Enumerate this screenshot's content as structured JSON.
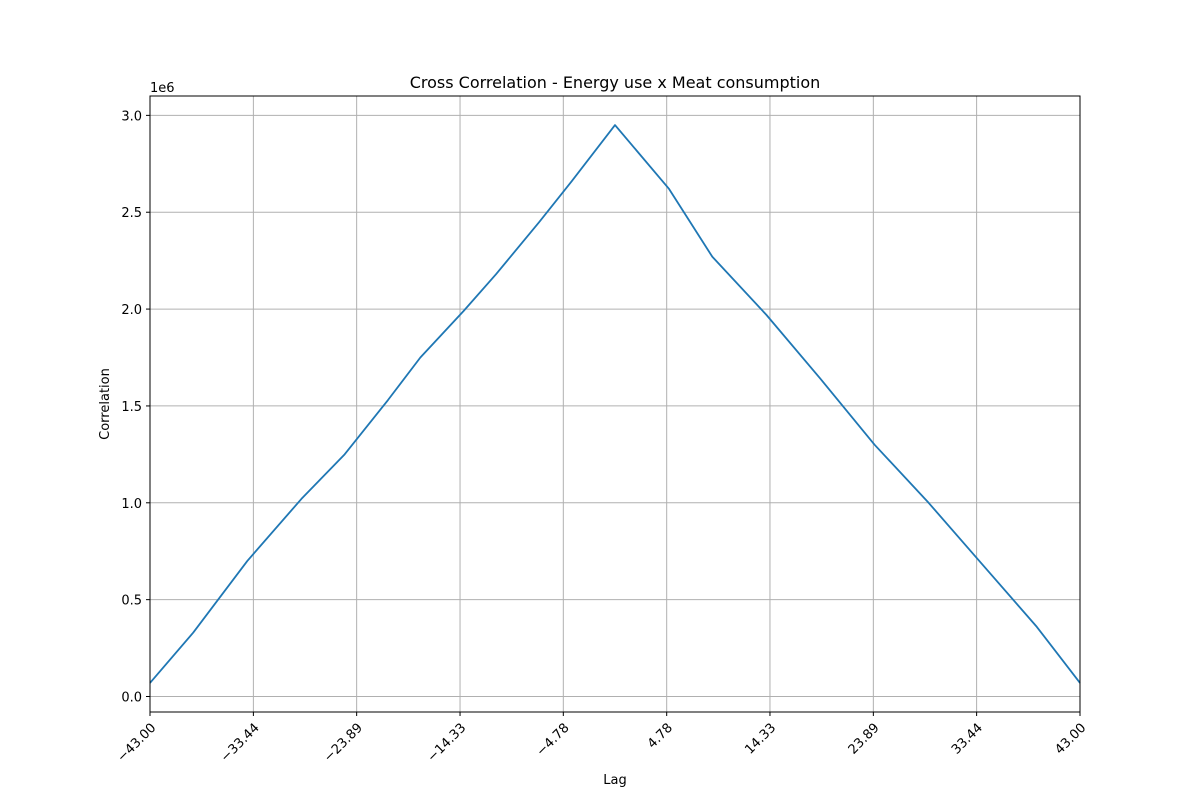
{
  "chart_data": {
    "type": "line",
    "title": "Cross Correlation - Energy use x Meat consumption",
    "xlabel": "Lag",
    "ylabel": "Correlation",
    "y_offset_label": "1e6",
    "xlim": [
      -43,
      43
    ],
    "ylim": [
      -0.08,
      3.1
    ],
    "grid": true,
    "x_ticks": [
      -43.0,
      -33.44,
      -23.89,
      -14.33,
      -4.78,
      4.78,
      14.33,
      23.89,
      33.44,
      43.0
    ],
    "x_tick_labels": [
      "−43.00",
      "−33.44",
      "−23.89",
      "−14.33",
      "−4.78",
      "4.78",
      "14.33",
      "23.89",
      "33.44",
      "43.00"
    ],
    "y_ticks": [
      0.0,
      0.5,
      1.0,
      1.5,
      2.0,
      2.5,
      3.0
    ],
    "y_tick_labels": [
      "0.0",
      "0.5",
      "1.0",
      "1.5",
      "2.0",
      "2.5",
      "3.0"
    ],
    "series": [
      {
        "color": "#1f77b4",
        "x": [
          -43,
          -39,
          -34,
          -29,
          -25,
          -21,
          -18,
          -14,
          -11,
          -7,
          -4,
          0,
          5,
          9,
          14,
          19,
          24,
          29,
          34,
          39,
          43
        ],
        "y": [
          0.07,
          0.33,
          0.7,
          1.02,
          1.25,
          1.53,
          1.75,
          1.99,
          2.18,
          2.45,
          2.66,
          2.95,
          2.62,
          2.27,
          1.97,
          1.64,
          1.3,
          1.0,
          0.68,
          0.36,
          0.07
        ]
      }
    ]
  }
}
